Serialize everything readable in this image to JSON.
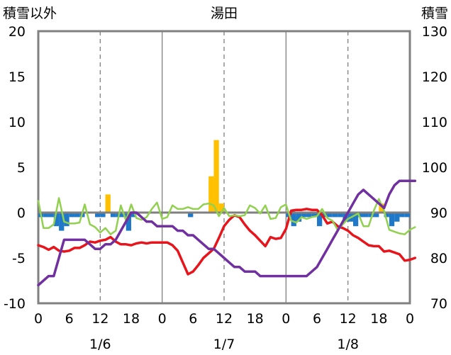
{
  "chart_data": {
    "type": "bar+line",
    "title": "湯田",
    "left_axis_label": "積雪以外",
    "right_axis_label": "積雪",
    "left_ylim": [
      -10,
      20
    ],
    "left_yticks": [
      -10,
      -5,
      0,
      5,
      10,
      15,
      20
    ],
    "right_ylim": [
      70,
      130
    ],
    "right_yticks": [
      70,
      80,
      90,
      100,
      110,
      120,
      130
    ],
    "x_range_hours": [
      0,
      72
    ],
    "x_tick_labels": [
      "0",
      "6",
      "12",
      "18",
      "0",
      "6",
      "12",
      "18",
      "0",
      "6",
      "12",
      "18",
      "0"
    ],
    "date_labels": [
      {
        "label": "1/6",
        "hour": 12
      },
      {
        "label": "1/7",
        "hour": 36
      },
      {
        "label": "1/8",
        "hour": 60
      }
    ],
    "grid_dashed_hours": [
      12,
      36,
      60
    ],
    "grid_solid_hours": [
      24,
      48
    ],
    "bar_width_hours": 1,
    "bars": [
      {
        "x": 0.5,
        "value": -0.5,
        "color": "#1f78c8"
      },
      {
        "x": 1.5,
        "value": -0.5,
        "color": "#1f78c8"
      },
      {
        "x": 2.5,
        "value": -0.5,
        "color": "#1f78c8"
      },
      {
        "x": 3.5,
        "value": -1.5,
        "color": "#1f78c8"
      },
      {
        "x": 4.5,
        "value": -2.0,
        "color": "#1f78c8"
      },
      {
        "x": 5.5,
        "value": -1.5,
        "color": "#1f78c8"
      },
      {
        "x": 6.5,
        "value": -0.5,
        "color": "#1f78c8"
      },
      {
        "x": 7.5,
        "value": -0.5,
        "color": "#1f78c8"
      },
      {
        "x": 8.5,
        "value": -0.5,
        "color": "#1f78c8"
      },
      {
        "x": 11.5,
        "value": -0.5,
        "color": "#1f78c8"
      },
      {
        "x": 12.5,
        "value": -0.5,
        "color": "#1f78c8"
      },
      {
        "x": 13.5,
        "value": 2.0,
        "color": "#ffc000"
      },
      {
        "x": 14.5,
        "value": -0.5,
        "color": "#1f78c8"
      },
      {
        "x": 15.5,
        "value": -0.5,
        "color": "#1f78c8"
      },
      {
        "x": 16.5,
        "value": -0.5,
        "color": "#1f78c8"
      },
      {
        "x": 17.5,
        "value": -2.0,
        "color": "#1f78c8"
      },
      {
        "x": 18.5,
        "value": -0.5,
        "color": "#1f78c8"
      },
      {
        "x": 29.5,
        "value": -0.5,
        "color": "#1f78c8"
      },
      {
        "x": 33.5,
        "value": 4.0,
        "color": "#ffc000"
      },
      {
        "x": 34.5,
        "value": 8.0,
        "color": "#ffc000"
      },
      {
        "x": 35.5,
        "value": 1.0,
        "color": "#ffc000"
      },
      {
        "x": 48.5,
        "value": -0.5,
        "color": "#1f78c8"
      },
      {
        "x": 49.5,
        "value": -1.5,
        "color": "#1f78c8"
      },
      {
        "x": 50.5,
        "value": -1.0,
        "color": "#1f78c8"
      },
      {
        "x": 51.5,
        "value": -0.5,
        "color": "#1f78c8"
      },
      {
        "x": 52.5,
        "value": -0.5,
        "color": "#1f78c8"
      },
      {
        "x": 53.5,
        "value": -0.5,
        "color": "#1f78c8"
      },
      {
        "x": 54.5,
        "value": -1.5,
        "color": "#1f78c8"
      },
      {
        "x": 55.5,
        "value": -0.5,
        "color": "#1f78c8"
      },
      {
        "x": 56.5,
        "value": -0.5,
        "color": "#1f78c8"
      },
      {
        "x": 57.5,
        "value": -0.5,
        "color": "#1f78c8"
      },
      {
        "x": 58.5,
        "value": -0.5,
        "color": "#1f78c8"
      },
      {
        "x": 59.5,
        "value": -1.0,
        "color": "#1f78c8"
      },
      {
        "x": 60.5,
        "value": -1.0,
        "color": "#1f78c8"
      },
      {
        "x": 61.5,
        "value": -1.5,
        "color": "#1f78c8"
      },
      {
        "x": 62.5,
        "value": -0.5,
        "color": "#1f78c8"
      },
      {
        "x": 63.5,
        "value": -0.5,
        "color": "#1f78c8"
      },
      {
        "x": 64.5,
        "value": -0.5,
        "color": "#1f78c8"
      },
      {
        "x": 65.5,
        "value": -0.5,
        "color": "#1f78c8"
      },
      {
        "x": 66.5,
        "value": 1.0,
        "color": "#ffc000"
      },
      {
        "x": 67.5,
        "value": -0.5,
        "color": "#1f78c8"
      },
      {
        "x": 68.5,
        "value": -1.5,
        "color": "#1f78c8"
      },
      {
        "x": 69.5,
        "value": -1.0,
        "color": "#1f78c8"
      },
      {
        "x": 70.5,
        "value": -0.5,
        "color": "#1f78c8"
      },
      {
        "x": 71.5,
        "value": -0.5,
        "color": "#1f78c8"
      }
    ],
    "series": [
      {
        "axis": "left",
        "color": "#e8141b",
        "stroke": 3.5,
        "points": [
          [
            0,
            -3.6
          ],
          [
            1,
            -3.8
          ],
          [
            2,
            -4.1
          ],
          [
            3,
            -3.8
          ],
          [
            4,
            -4.2
          ],
          [
            5,
            -4.3
          ],
          [
            6,
            -4.2
          ],
          [
            7,
            -3.9
          ],
          [
            8,
            -3.9
          ],
          [
            9,
            -3.6
          ],
          [
            10,
            -3.2
          ],
          [
            11,
            -3.3
          ],
          [
            12,
            -3.1
          ],
          [
            13,
            -3.0
          ],
          [
            14,
            -2.7
          ],
          [
            15,
            -3.2
          ],
          [
            16,
            -3.5
          ],
          [
            17,
            -3.5
          ],
          [
            18,
            -3.6
          ],
          [
            19,
            -3.4
          ],
          [
            20,
            -3.3
          ],
          [
            21,
            -3.4
          ],
          [
            22,
            -3.3
          ],
          [
            23,
            -3.3
          ],
          [
            24,
            -3.3
          ],
          [
            25,
            -3.3
          ],
          [
            26,
            -3.6
          ],
          [
            27,
            -4.2
          ],
          [
            28,
            -5.5
          ],
          [
            29,
            -6.8
          ],
          [
            30,
            -6.5
          ],
          [
            31,
            -5.8
          ],
          [
            32,
            -5.0
          ],
          [
            33,
            -4.5
          ],
          [
            34,
            -4.0
          ],
          [
            35,
            -2.8
          ],
          [
            36,
            -1.5
          ],
          [
            37,
            -0.8
          ],
          [
            38,
            -0.3
          ],
          [
            39,
            -0.5
          ],
          [
            40,
            -1.3
          ],
          [
            41,
            -2.0
          ],
          [
            42,
            -2.5
          ],
          [
            43,
            -3.1
          ],
          [
            44,
            -3.7
          ],
          [
            45,
            -2.7
          ],
          [
            46,
            -2.9
          ],
          [
            47,
            -2.8
          ],
          [
            48,
            -1.8
          ],
          [
            49,
            0.2
          ],
          [
            50,
            0.3
          ],
          [
            51,
            0.3
          ],
          [
            52,
            0.4
          ],
          [
            53,
            0.3
          ],
          [
            54,
            0.3
          ],
          [
            55,
            -0.3
          ],
          [
            56,
            -1.2
          ],
          [
            57,
            -1.0
          ],
          [
            58,
            -1.5
          ],
          [
            59,
            -1.7
          ],
          [
            60,
            -2.0
          ],
          [
            61,
            -2.5
          ],
          [
            62,
            -2.8
          ],
          [
            63,
            -3.2
          ],
          [
            64,
            -3.6
          ],
          [
            65,
            -3.7
          ],
          [
            66,
            -3.7
          ],
          [
            67,
            -4.3
          ],
          [
            68,
            -4.2
          ],
          [
            69,
            -4.4
          ],
          [
            70,
            -4.6
          ],
          [
            71,
            -5.3
          ],
          [
            72,
            -5.2
          ],
          [
            73,
            -5.0
          ]
        ]
      },
      {
        "axis": "left",
        "color": "#92d050",
        "stroke": 2.5,
        "points": [
          [
            0,
            1.3
          ],
          [
            1,
            -1.7
          ],
          [
            2,
            -1.7
          ],
          [
            3,
            -1.3
          ],
          [
            4,
            1.6
          ],
          [
            5,
            -1.0
          ],
          [
            6,
            -1.2
          ],
          [
            7,
            -1.2
          ],
          [
            8,
            -1.1
          ],
          [
            9,
            0.9
          ],
          [
            10,
            -1.3
          ],
          [
            11,
            -1.6
          ],
          [
            12,
            -2.2
          ],
          [
            13,
            -1.7
          ],
          [
            14,
            -2.4
          ],
          [
            15,
            -2.0
          ],
          [
            16,
            0.8
          ],
          [
            17,
            -0.9
          ],
          [
            18,
            0.9
          ],
          [
            19,
            -0.6
          ],
          [
            20,
            -0.8
          ],
          [
            21,
            -0.5
          ],
          [
            22,
            0.4
          ],
          [
            23,
            1.1
          ],
          [
            24,
            -0.7
          ],
          [
            25,
            -0.5
          ],
          [
            26,
            0.8
          ],
          [
            27,
            0.4
          ],
          [
            28,
            0.4
          ],
          [
            29,
            0.6
          ],
          [
            30,
            0.4
          ],
          [
            31,
            0.4
          ],
          [
            32,
            0.9
          ],
          [
            33,
            1.0
          ],
          [
            34,
            0.8
          ],
          [
            35,
            -0.4
          ],
          [
            36,
            0.5
          ],
          [
            37,
            -0.4
          ],
          [
            38,
            -0.3
          ],
          [
            39,
            -0.4
          ],
          [
            40,
            -0.3
          ],
          [
            41,
            0.8
          ],
          [
            42,
            0.5
          ],
          [
            43,
            -0.1
          ],
          [
            44,
            0.8
          ],
          [
            45,
            -0.7
          ],
          [
            46,
            -0.6
          ],
          [
            47,
            0.6
          ],
          [
            48,
            0.9
          ],
          [
            49,
            -0.9
          ],
          [
            50,
            -1.1
          ],
          [
            51,
            -0.5
          ],
          [
            52,
            -0.7
          ],
          [
            53,
            -0.5
          ],
          [
            54,
            -0.4
          ],
          [
            55,
            0.4
          ],
          [
            56,
            -0.6
          ],
          [
            57,
            -0.9
          ],
          [
            58,
            -1.9
          ],
          [
            59,
            -1.3
          ],
          [
            60,
            -0.7
          ],
          [
            61,
            -0.4
          ],
          [
            62,
            -0.1
          ],
          [
            63,
            -1.5
          ],
          [
            64,
            -1.5
          ],
          [
            65,
            0.2
          ],
          [
            66,
            1.5
          ],
          [
            67,
            0.2
          ],
          [
            68,
            -1.9
          ],
          [
            69,
            -2.1
          ],
          [
            70,
            -2.3
          ],
          [
            71,
            -2.4
          ],
          [
            72,
            -1.9
          ],
          [
            73,
            -1.6
          ]
        ]
      },
      {
        "axis": "right",
        "color": "#7030a0",
        "stroke": 3.5,
        "points": [
          [
            0,
            74
          ],
          [
            1,
            75
          ],
          [
            2,
            76
          ],
          [
            3,
            76
          ],
          [
            4,
            80
          ],
          [
            5,
            84
          ],
          [
            6,
            84
          ],
          [
            7,
            84
          ],
          [
            8,
            84
          ],
          [
            9,
            84
          ],
          [
            10,
            83
          ],
          [
            11,
            82
          ],
          [
            12,
            82
          ],
          [
            13,
            83
          ],
          [
            14,
            83
          ],
          [
            15,
            84
          ],
          [
            16,
            86
          ],
          [
            17,
            88
          ],
          [
            18,
            90
          ],
          [
            19,
            90
          ],
          [
            20,
            89
          ],
          [
            21,
            88
          ],
          [
            22,
            88
          ],
          [
            23,
            87
          ],
          [
            24,
            87
          ],
          [
            25,
            87
          ],
          [
            26,
            87
          ],
          [
            27,
            86
          ],
          [
            28,
            86
          ],
          [
            29,
            85
          ],
          [
            30,
            85
          ],
          [
            31,
            84
          ],
          [
            32,
            83
          ],
          [
            33,
            82
          ],
          [
            34,
            82
          ],
          [
            35,
            81
          ],
          [
            36,
            80
          ],
          [
            37,
            79
          ],
          [
            38,
            78
          ],
          [
            39,
            78
          ],
          [
            40,
            77
          ],
          [
            41,
            77
          ],
          [
            42,
            77
          ],
          [
            43,
            76
          ],
          [
            44,
            76
          ],
          [
            45,
            76
          ],
          [
            46,
            76
          ],
          [
            47,
            76
          ],
          [
            48,
            76
          ],
          [
            49,
            76
          ],
          [
            50,
            76
          ],
          [
            51,
            76
          ],
          [
            52,
            76
          ],
          [
            53,
            77
          ],
          [
            54,
            78
          ],
          [
            55,
            80
          ],
          [
            56,
            82
          ],
          [
            57,
            84
          ],
          [
            58,
            86
          ],
          [
            59,
            88
          ],
          [
            60,
            90
          ],
          [
            61,
            92
          ],
          [
            62,
            94
          ],
          [
            63,
            95
          ],
          [
            64,
            94
          ],
          [
            65,
            93
          ],
          [
            66,
            92
          ],
          [
            67,
            91
          ],
          [
            68,
            94
          ],
          [
            69,
            96
          ],
          [
            70,
            97
          ],
          [
            71,
            97
          ],
          [
            72,
            97
          ],
          [
            73,
            97
          ]
        ]
      }
    ]
  }
}
